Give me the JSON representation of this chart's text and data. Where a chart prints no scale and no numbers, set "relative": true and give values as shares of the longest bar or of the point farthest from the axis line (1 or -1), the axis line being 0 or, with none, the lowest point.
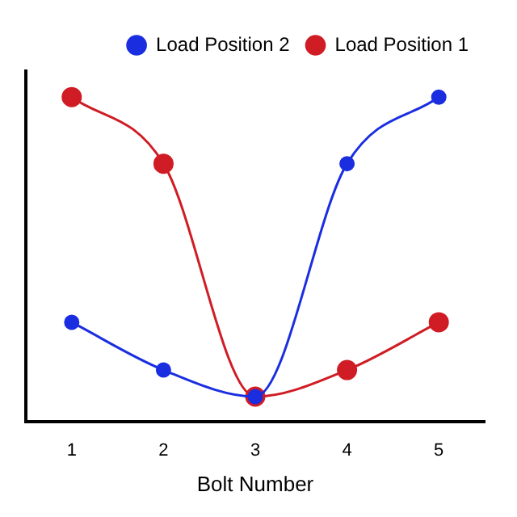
{
  "chart_data": {
    "type": "line",
    "relative": true,
    "xlabel": "Bolt Number",
    "categories": [
      "1",
      "2",
      "3",
      "4",
      "5"
    ],
    "marker": "circle",
    "line_style": "solid",
    "legend": "top right",
    "grid": false,
    "series": [
      {
        "name": "Load Position 1",
        "color": "#d01c24",
        "values": [
          1,
          0.795,
          0.078,
          0.16,
          0.307
        ]
      },
      {
        "name": "Load Position 2",
        "color": "#1a2ee0",
        "values": [
          0.307,
          0.16,
          0.078,
          0.795,
          1
        ]
      }
    ]
  }
}
